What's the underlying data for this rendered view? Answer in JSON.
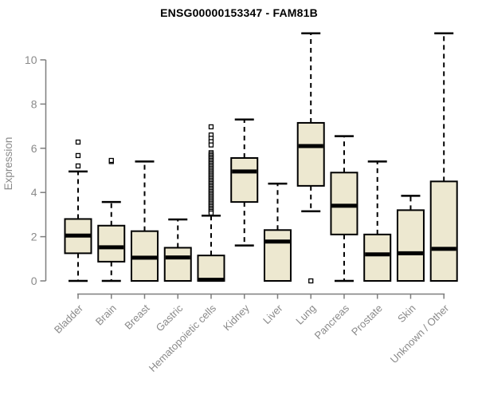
{
  "chart_data": {
    "type": "boxplot",
    "title": "ENSG00000153347 - FAM81B",
    "xlabel": "",
    "ylabel": "Expression",
    "ylim": [
      0,
      11.3
    ],
    "y_ticks": [
      0,
      2,
      4,
      6,
      8,
      10
    ],
    "grid": "off",
    "legend": "none",
    "categories": [
      "Bladder",
      "Brain",
      "Breast",
      "Gastric",
      "Hematopoietic cells",
      "Kidney",
      "Liver",
      "Lung",
      "Pancreas",
      "Prostate",
      "Skin",
      "Unknown / Other"
    ],
    "series": [
      {
        "name": "Bladder",
        "low": 0,
        "q1": 1.25,
        "median": 2.05,
        "q3": 2.8,
        "high": 4.95,
        "outliers": [
          5.2,
          5.67,
          6.28
        ]
      },
      {
        "name": "Brain",
        "low": 0,
        "q1": 0.87,
        "median": 1.52,
        "q3": 2.5,
        "high": 3.57,
        "outliers": [
          5.4,
          5.45
        ]
      },
      {
        "name": "Breast",
        "low": 0,
        "q1": 0,
        "median": 1.05,
        "q3": 2.25,
        "high": 5.4,
        "outliers": []
      },
      {
        "name": "Gastric",
        "low": 0,
        "q1": 0,
        "median": 1.06,
        "q3": 1.5,
        "high": 2.78,
        "outliers": []
      },
      {
        "name": "Hematopoietic cells",
        "low": 0,
        "q1": 0,
        "median": 0.05,
        "q3": 1.15,
        "high": 2.95,
        "outliers": [
          6.97,
          6.6,
          6.45,
          6.3,
          6.15,
          5.8,
          5.73,
          5.66,
          5.59,
          5.52,
          5.45,
          5.38,
          5.31,
          5.24,
          5.17,
          5.1,
          5.03,
          4.96,
          4.89,
          4.82,
          4.75,
          4.68,
          4.61,
          4.54,
          4.47,
          4.4,
          4.33,
          4.26,
          4.19,
          4.12,
          4.05,
          3.98,
          3.91,
          3.84,
          3.77,
          3.7,
          3.63,
          3.56,
          3.49,
          3.42,
          3.35,
          3.28,
          3.21,
          3.14,
          3.07
        ]
      },
      {
        "name": "Kidney",
        "low": 1.6,
        "q1": 3.57,
        "median": 4.95,
        "q3": 5.56,
        "high": 7.3,
        "outliers": []
      },
      {
        "name": "Liver",
        "low": 0,
        "q1": 0,
        "median": 1.78,
        "q3": 2.3,
        "high": 4.4,
        "outliers": []
      },
      {
        "name": "Lung",
        "low": 3.15,
        "q1": 4.3,
        "median": 6.1,
        "q3": 7.15,
        "high": 11.2,
        "outliers": [
          0
        ]
      },
      {
        "name": "Pancreas",
        "low": 0,
        "q1": 2.1,
        "median": 3.4,
        "q3": 4.9,
        "high": 6.55,
        "outliers": []
      },
      {
        "name": "Prostate",
        "low": 0,
        "q1": 0,
        "median": 1.2,
        "q3": 2.1,
        "high": 5.4,
        "outliers": []
      },
      {
        "name": "Skin",
        "low": 0,
        "q1": 0,
        "median": 1.25,
        "q3": 3.2,
        "high": 3.85,
        "outliers": []
      },
      {
        "name": "Unknown / Other",
        "low": 0,
        "q1": 0,
        "median": 1.45,
        "q3": 4.5,
        "high": 11.2,
        "outliers": []
      }
    ]
  },
  "styles": {
    "box_fill": "#EDE8D0",
    "box_border": "#000000",
    "median_color": "#000000",
    "whisker_color": "#000000",
    "outlier_fill": "#FFFFFF",
    "axis_color": "#7E7E7E",
    "label_color": "#8A8A8A",
    "title_color": "#000000",
    "background": "#FFFFFF"
  }
}
